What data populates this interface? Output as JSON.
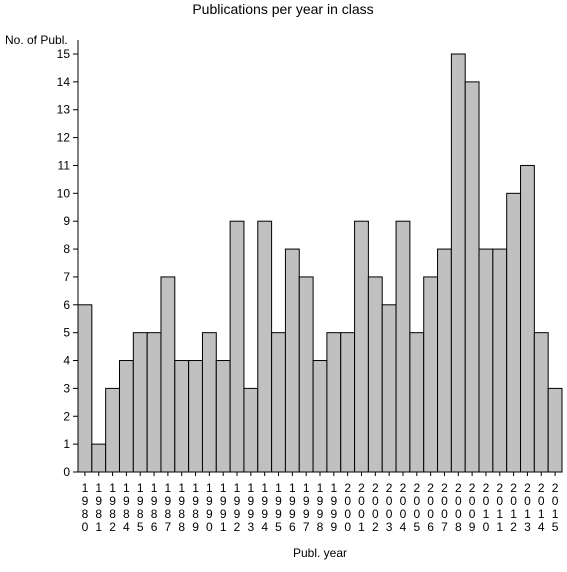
{
  "chart_data": {
    "type": "bar",
    "title": "Publications per year in class",
    "xlabel": "Publ. year",
    "ylabel": "No. of Publ.",
    "ylim": [
      0,
      15
    ],
    "yticks": [
      0,
      1,
      2,
      3,
      4,
      5,
      6,
      7,
      8,
      9,
      10,
      11,
      12,
      13,
      14,
      15
    ],
    "categories": [
      "1980",
      "1981",
      "1982",
      "1984",
      "1985",
      "1986",
      "1987",
      "1988",
      "1989",
      "1990",
      "1991",
      "1992",
      "1993",
      "1994",
      "1995",
      "1996",
      "1997",
      "1998",
      "1999",
      "2000",
      "2001",
      "2002",
      "2003",
      "2004",
      "2005",
      "2006",
      "2007",
      "2008",
      "2009",
      "2010",
      "2011",
      "2012",
      "2013",
      "2014",
      "2015"
    ],
    "values": [
      6,
      1,
      3,
      4,
      5,
      5,
      7,
      4,
      4,
      5,
      4,
      9,
      3,
      9,
      5,
      8,
      7,
      4,
      5,
      5,
      9,
      7,
      6,
      9,
      5,
      7,
      8,
      15,
      14,
      8,
      8,
      10,
      11,
      5,
      3
    ],
    "bar_color": "#c0c0c0",
    "bar_edge_color": "#000000",
    "grid": false,
    "legend": "none"
  }
}
